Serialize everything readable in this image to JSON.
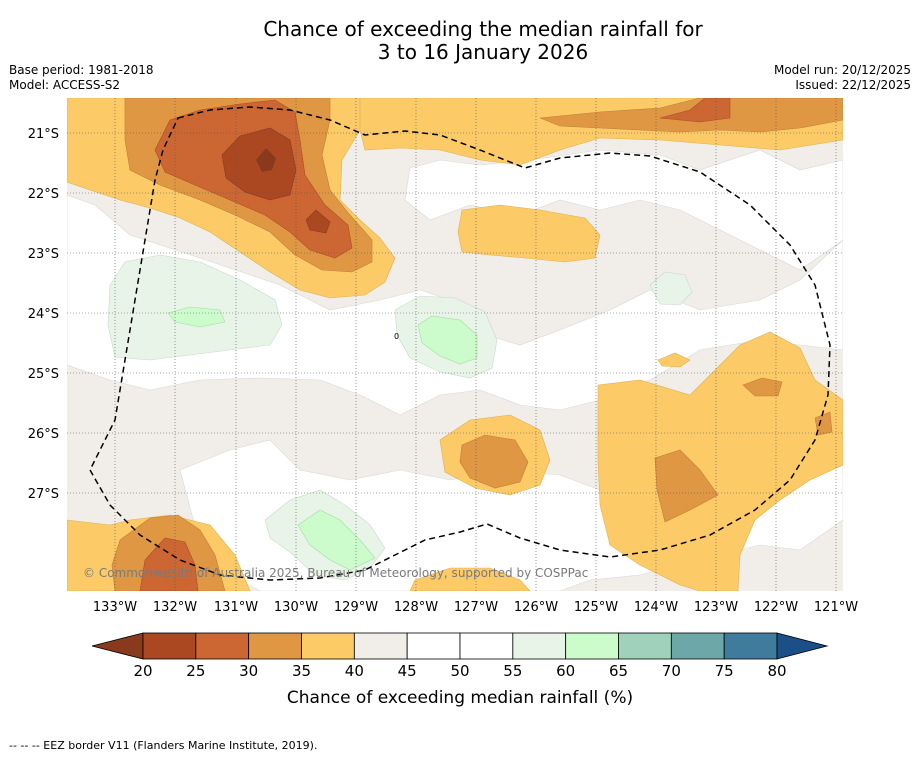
{
  "title": {
    "line1": "Chance of exceeding the median rainfall for",
    "line2": "3 to 16 January 2026"
  },
  "meta": {
    "base_period": "Base period: 1981-2018",
    "model": "Model: ACCESS-S2",
    "model_run": "Model run: 20/12/2025",
    "issued": "Issued: 22/12/2025"
  },
  "map": {
    "copyright": "© Commonwealth of Australia 2025, Bureau of Meteorology, supported by COSPPac",
    "lat_labels": [
      "21°S",
      "22°S",
      "23°S",
      "24°S",
      "25°S",
      "26°S",
      "27°S"
    ],
    "lon_labels": [
      "133°W",
      "132°W",
      "131°W",
      "130°W",
      "129°W",
      "128°W",
      "127°W",
      "126°W",
      "125°W",
      "124°W",
      "123°W",
      "122°W",
      "121°W"
    ],
    "contour_marker": "0"
  },
  "colorbar": {
    "ticks": [
      "20",
      "25",
      "30",
      "35",
      "40",
      "45",
      "50",
      "55",
      "60",
      "65",
      "70",
      "75",
      "80"
    ],
    "colors": [
      "#ab4822",
      "#cc6633",
      "#e09744",
      "#fdca68",
      "#f1ede8",
      "#ffffff",
      "#ffffff",
      "#e9f4e8",
      "#ccfccc",
      "#9fd1bb",
      "#6ea7a8",
      "#3f7b9c"
    ],
    "under_color": "#8a3a1c",
    "over_color": "#1a4f87",
    "label": "Chance of exceeding median rainfall (%)"
  },
  "footnote": "--  --  -- EEZ border V11 (Flanders Marine Institute, 2019)."
}
